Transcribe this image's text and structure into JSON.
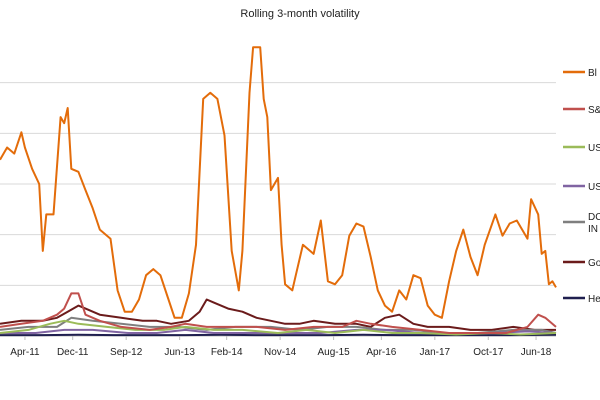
{
  "chart_data": {
    "type": "line",
    "title": "Rolling 3-month volatility",
    "x_tick_labels": [
      "Apr-11",
      "Dec-11",
      "Sep-12",
      "Jun-13",
      "Feb-14",
      "Nov-14",
      "Aug-15",
      "Apr-16",
      "Jan-17",
      "Oct-17",
      "Jun-18"
    ],
    "x_range": [
      "2010-11",
      "2018-06"
    ],
    "ylim": [
      0,
      100
    ],
    "grid": true,
    "legend_placement": "right",
    "series": [
      {
        "name": "Bl",
        "color": "#E36C0A",
        "values": [
          [
            2010.9,
            58
          ],
          [
            2011.0,
            62
          ],
          [
            2011.1,
            60
          ],
          [
            2011.2,
            67
          ],
          [
            2011.25,
            62
          ],
          [
            2011.35,
            55
          ],
          [
            2011.45,
            50
          ],
          [
            2011.5,
            28
          ],
          [
            2011.55,
            40
          ],
          [
            2011.65,
            40
          ],
          [
            2011.75,
            72
          ],
          [
            2011.8,
            70
          ],
          [
            2011.85,
            75
          ],
          [
            2011.9,
            55
          ],
          [
            2012.0,
            54
          ],
          [
            2012.1,
            48
          ],
          [
            2012.2,
            42
          ],
          [
            2012.3,
            35
          ],
          [
            2012.45,
            32
          ],
          [
            2012.55,
            15
          ],
          [
            2012.65,
            8
          ],
          [
            2012.75,
            8
          ],
          [
            2012.85,
            12
          ],
          [
            2012.95,
            20
          ],
          [
            2013.05,
            22
          ],
          [
            2013.15,
            20
          ],
          [
            2013.25,
            13
          ],
          [
            2013.35,
            6
          ],
          [
            2013.45,
            6
          ],
          [
            2013.55,
            14
          ],
          [
            2013.65,
            30
          ],
          [
            2013.75,
            78
          ],
          [
            2013.85,
            80
          ],
          [
            2013.95,
            78
          ],
          [
            2014.05,
            66
          ],
          [
            2014.15,
            28
          ],
          [
            2014.25,
            15
          ],
          [
            2014.3,
            28
          ],
          [
            2014.4,
            80
          ],
          [
            2014.45,
            95
          ],
          [
            2014.55,
            95
          ],
          [
            2014.6,
            78
          ],
          [
            2014.65,
            72
          ],
          [
            2014.7,
            48
          ],
          [
            2014.8,
            52
          ],
          [
            2014.85,
            30
          ],
          [
            2014.9,
            17
          ],
          [
            2015.0,
            15
          ],
          [
            2015.05,
            20
          ],
          [
            2015.15,
            30
          ],
          [
            2015.3,
            27
          ],
          [
            2015.4,
            38
          ],
          [
            2015.5,
            18
          ],
          [
            2015.6,
            17
          ],
          [
            2015.7,
            20
          ],
          [
            2015.8,
            33
          ],
          [
            2015.9,
            37
          ],
          [
            2016.0,
            36
          ],
          [
            2016.1,
            26
          ],
          [
            2016.2,
            15
          ],
          [
            2016.3,
            10
          ],
          [
            2016.4,
            8
          ],
          [
            2016.5,
            15
          ],
          [
            2016.6,
            12
          ],
          [
            2016.7,
            20
          ],
          [
            2016.8,
            19
          ],
          [
            2016.9,
            10
          ],
          [
            2017.0,
            7
          ],
          [
            2017.1,
            6
          ],
          [
            2017.2,
            18
          ],
          [
            2017.3,
            28
          ],
          [
            2017.4,
            35
          ],
          [
            2017.5,
            26
          ],
          [
            2017.6,
            20
          ],
          [
            2017.7,
            30
          ],
          [
            2017.85,
            40
          ],
          [
            2017.95,
            33
          ],
          [
            2018.05,
            37
          ],
          [
            2018.15,
            38
          ],
          [
            2018.3,
            32
          ],
          [
            2018.35,
            45
          ],
          [
            2018.45,
            40
          ],
          [
            2018.5,
            27
          ],
          [
            2018.55,
            28
          ],
          [
            2018.6,
            17
          ],
          [
            2018.65,
            18
          ],
          [
            2018.7,
            16
          ]
        ]
      },
      {
        "name": "S&",
        "color": "#C0504D",
        "values": [
          [
            2010.9,
            3
          ],
          [
            2011.2,
            4
          ],
          [
            2011.5,
            5
          ],
          [
            2011.7,
            7
          ],
          [
            2011.8,
            9
          ],
          [
            2011.9,
            14
          ],
          [
            2012.0,
            14
          ],
          [
            2012.1,
            7
          ],
          [
            2012.3,
            5
          ],
          [
            2012.6,
            3
          ],
          [
            2013.0,
            2
          ],
          [
            2013.3,
            3
          ],
          [
            2013.5,
            4
          ],
          [
            2013.8,
            3
          ],
          [
            2014.1,
            3
          ],
          [
            2014.5,
            3
          ],
          [
            2014.9,
            2
          ],
          [
            2015.3,
            3
          ],
          [
            2015.7,
            3
          ],
          [
            2015.9,
            5
          ],
          [
            2016.1,
            4
          ],
          [
            2016.4,
            3
          ],
          [
            2016.8,
            2
          ],
          [
            2017.2,
            1
          ],
          [
            2017.6,
            1
          ],
          [
            2018.0,
            1
          ],
          [
            2018.3,
            3
          ],
          [
            2018.45,
            7
          ],
          [
            2018.55,
            6
          ],
          [
            2018.7,
            3
          ]
        ]
      },
      {
        "name": "US",
        "color": "#9BBB59",
        "values": [
          [
            2010.9,
            1
          ],
          [
            2011.3,
            2
          ],
          [
            2011.6,
            4
          ],
          [
            2011.8,
            5
          ],
          [
            2012.0,
            4
          ],
          [
            2012.4,
            3
          ],
          [
            2012.8,
            2
          ],
          [
            2013.2,
            2
          ],
          [
            2013.5,
            3
          ],
          [
            2013.9,
            2
          ],
          [
            2014.3,
            2
          ],
          [
            2014.8,
            1
          ],
          [
            2015.2,
            2
          ],
          [
            2015.6,
            1
          ],
          [
            2016.0,
            2
          ],
          [
            2016.4,
            1
          ],
          [
            2016.8,
            1
          ],
          [
            2017.3,
            0.5
          ],
          [
            2017.8,
            1
          ],
          [
            2018.2,
            0.5
          ],
          [
            2018.7,
            1
          ]
        ]
      },
      {
        "name": "US",
        "color": "#8064A2",
        "values": [
          [
            2010.9,
            1
          ],
          [
            2011.4,
            1
          ],
          [
            2011.8,
            2
          ],
          [
            2012.2,
            2
          ],
          [
            2012.7,
            1
          ],
          [
            2013.1,
            1
          ],
          [
            2013.5,
            2
          ],
          [
            2013.9,
            1
          ],
          [
            2014.4,
            1
          ],
          [
            2014.9,
            1
          ],
          [
            2015.4,
            1
          ],
          [
            2015.9,
            2
          ],
          [
            2016.3,
            2
          ],
          [
            2016.8,
            1
          ],
          [
            2017.3,
            1
          ],
          [
            2017.8,
            1
          ],
          [
            2018.3,
            1.5
          ],
          [
            2018.7,
            1
          ]
        ]
      },
      {
        "name": "DC\nIN",
        "color": "#7F7F7F",
        "values": [
          [
            2010.9,
            2
          ],
          [
            2011.3,
            3
          ],
          [
            2011.7,
            3
          ],
          [
            2011.9,
            6
          ],
          [
            2012.2,
            5
          ],
          [
            2012.6,
            4
          ],
          [
            2013.0,
            3
          ],
          [
            2013.4,
            3
          ],
          [
            2013.8,
            2
          ],
          [
            2014.2,
            3
          ],
          [
            2014.7,
            3
          ],
          [
            2015.1,
            2
          ],
          [
            2015.5,
            3
          ],
          [
            2015.9,
            3
          ],
          [
            2016.3,
            2
          ],
          [
            2016.7,
            2
          ],
          [
            2017.1,
            1
          ],
          [
            2017.6,
            1
          ],
          [
            2018.1,
            2
          ],
          [
            2018.5,
            2
          ],
          [
            2018.7,
            1
          ]
        ]
      },
      {
        "name": "Go",
        "color": "#6B1B1B",
        "values": [
          [
            2010.9,
            4
          ],
          [
            2011.2,
            5
          ],
          [
            2011.5,
            5
          ],
          [
            2011.7,
            6
          ],
          [
            2011.85,
            8
          ],
          [
            2012.0,
            10
          ],
          [
            2012.1,
            9
          ],
          [
            2012.3,
            7
          ],
          [
            2012.6,
            6
          ],
          [
            2012.9,
            5
          ],
          [
            2013.1,
            5
          ],
          [
            2013.3,
            4
          ],
          [
            2013.55,
            5
          ],
          [
            2013.7,
            8
          ],
          [
            2013.8,
            12
          ],
          [
            2013.9,
            11
          ],
          [
            2014.1,
            9
          ],
          [
            2014.3,
            8
          ],
          [
            2014.5,
            6
          ],
          [
            2014.7,
            5
          ],
          [
            2014.9,
            4
          ],
          [
            2015.1,
            4
          ],
          [
            2015.3,
            5
          ],
          [
            2015.6,
            4
          ],
          [
            2015.9,
            4
          ],
          [
            2016.1,
            3
          ],
          [
            2016.3,
            6
          ],
          [
            2016.5,
            7
          ],
          [
            2016.7,
            4
          ],
          [
            2016.9,
            3
          ],
          [
            2017.2,
            3
          ],
          [
            2017.5,
            2
          ],
          [
            2017.8,
            2
          ],
          [
            2018.1,
            3
          ],
          [
            2018.4,
            2
          ],
          [
            2018.7,
            2
          ]
        ]
      },
      {
        "name": "He",
        "color": "#1F1F4F",
        "values": [
          [
            2010.9,
            0.3
          ],
          [
            2011.5,
            0.3
          ],
          [
            2012.0,
            0.4
          ],
          [
            2012.5,
            0.3
          ],
          [
            2013.0,
            0.3
          ],
          [
            2013.5,
            0.3
          ],
          [
            2014.0,
            0.4
          ],
          [
            2014.5,
            0.3
          ],
          [
            2015.0,
            0.3
          ],
          [
            2015.5,
            0.3
          ],
          [
            2016.0,
            0.4
          ],
          [
            2016.5,
            0.3
          ],
          [
            2017.0,
            0.3
          ],
          [
            2017.5,
            0.3
          ],
          [
            2018.0,
            0.3
          ],
          [
            2018.7,
            0.4
          ]
        ]
      }
    ]
  }
}
